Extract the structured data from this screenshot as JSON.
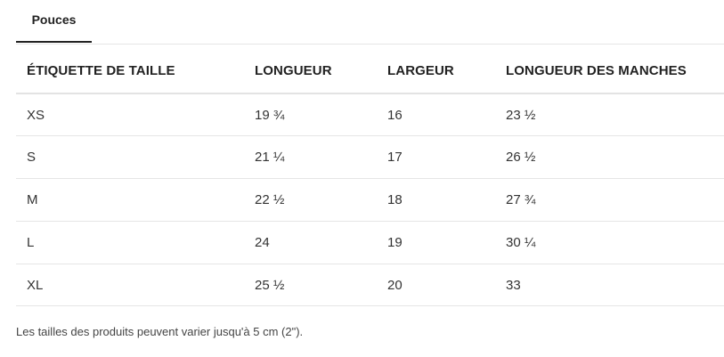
{
  "tab": {
    "label": "Pouces"
  },
  "table": {
    "headers": [
      "ÉTIQUETTE DE TAILLE",
      "LONGUEUR",
      "LARGEUR",
      "LONGUEUR DES MANCHES"
    ],
    "rows": [
      [
        "XS",
        "19 ¾",
        "16",
        "23 ½"
      ],
      [
        "S",
        "21 ¼",
        "17",
        "26 ½"
      ],
      [
        "M",
        "22 ½",
        "18",
        "27 ¾"
      ],
      [
        "L",
        "24",
        "19",
        "30 ¼"
      ],
      [
        "XL",
        "25 ½",
        "20",
        "33"
      ]
    ]
  },
  "note": "Les tailles des produits peuvent varier jusqu'à 5 cm (2\")."
}
